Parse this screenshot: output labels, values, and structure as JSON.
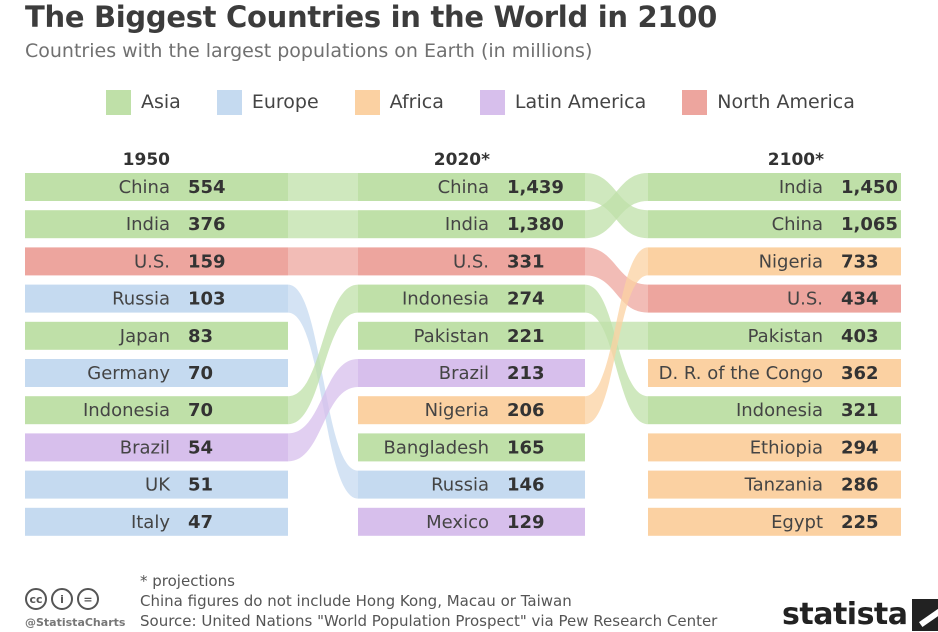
{
  "title": "The Biggest Countries in the World in 2100",
  "subtitle": "Countries with the largest populations on Earth (in millions)",
  "regions": {
    "Asia": "#bfe0a8",
    "Europe": "#c5daf0",
    "Africa": "#fbd1a2",
    "Latin America": "#d7bfec",
    "North America": "#eda59e"
  },
  "legend": [
    {
      "label": "Asia",
      "color": "#bfe0a8"
    },
    {
      "label": "Europe",
      "color": "#c5daf0"
    },
    {
      "label": "Africa",
      "color": "#fbd1a2"
    },
    {
      "label": "Latin America",
      "color": "#d7bfec"
    },
    {
      "label": "North America",
      "color": "#eda59e"
    }
  ],
  "chart_data": {
    "type": "table",
    "columns": [
      "1950",
      "2020*",
      "2100*"
    ],
    "rankings": [
      [
        {
          "country": "China",
          "value": "554",
          "region": "Asia"
        },
        {
          "country": "India",
          "value": "376",
          "region": "Asia"
        },
        {
          "country": "U.S.",
          "value": "159",
          "region": "North America"
        },
        {
          "country": "Russia",
          "value": "103",
          "region": "Europe"
        },
        {
          "country": "Japan",
          "value": "83",
          "region": "Asia"
        },
        {
          "country": "Germany",
          "value": "70",
          "region": "Europe"
        },
        {
          "country": "Indonesia",
          "value": "70",
          "region": "Asia"
        },
        {
          "country": "Brazil",
          "value": "54",
          "region": "Latin America"
        },
        {
          "country": "UK",
          "value": "51",
          "region": "Europe"
        },
        {
          "country": "Italy",
          "value": "47",
          "region": "Europe"
        }
      ],
      [
        {
          "country": "China",
          "value": "1,439",
          "region": "Asia"
        },
        {
          "country": "India",
          "value": "1,380",
          "region": "Asia"
        },
        {
          "country": "U.S.",
          "value": "331",
          "region": "North America"
        },
        {
          "country": "Indonesia",
          "value": "274",
          "region": "Asia"
        },
        {
          "country": "Pakistan",
          "value": "221",
          "region": "Asia"
        },
        {
          "country": "Brazil",
          "value": "213",
          "region": "Latin America"
        },
        {
          "country": "Nigeria",
          "value": "206",
          "region": "Africa"
        },
        {
          "country": "Bangladesh",
          "value": "165",
          "region": "Asia"
        },
        {
          "country": "Russia",
          "value": "146",
          "region": "Europe"
        },
        {
          "country": "Mexico",
          "value": "129",
          "region": "Latin America"
        }
      ],
      [
        {
          "country": "India",
          "value": "1,450",
          "region": "Asia"
        },
        {
          "country": "China",
          "value": "1,065",
          "region": "Asia"
        },
        {
          "country": "Nigeria",
          "value": "733",
          "region": "Africa"
        },
        {
          "country": "U.S.",
          "value": "434",
          "region": "North America"
        },
        {
          "country": "Pakistan",
          "value": "403",
          "region": "Asia"
        },
        {
          "country": "D. R. of the Congo",
          "value": "362",
          "region": "Africa"
        },
        {
          "country": "Indonesia",
          "value": "321",
          "region": "Asia"
        },
        {
          "country": "Ethiopia",
          "value": "294",
          "region": "Africa"
        },
        {
          "country": "Tanzania",
          "value": "286",
          "region": "Africa"
        },
        {
          "country": "Egypt",
          "value": "225",
          "region": "Africa"
        }
      ]
    ]
  },
  "footer": {
    "note1": "* projections",
    "note2": "China figures do not include Hong Kong, Macau or Taiwan",
    "source": "Source: United Nations \"World Population Prospect\" via Pew Research Center",
    "handle": "@StatistaCharts",
    "brand": "statista",
    "cc_icons": [
      "cc-icon",
      "by-icon",
      "nd-icon"
    ]
  }
}
